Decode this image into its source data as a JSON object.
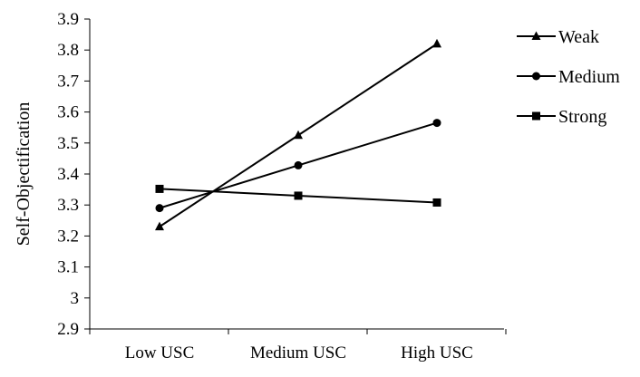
{
  "chart_data": {
    "type": "line",
    "categories": [
      "Low USC",
      "Medium USC",
      "High USC"
    ],
    "ylabel": "Self-Objectification",
    "xlabel": "",
    "ylim": [
      2.9,
      3.9
    ],
    "yticks": [
      "2.9",
      "3",
      "3.1",
      "3.2",
      "3.3",
      "3.4",
      "3.5",
      "3.6",
      "3.7",
      "3.8",
      "3.9"
    ],
    "grid": false,
    "legend_position": "right",
    "series": [
      {
        "name": "Weak",
        "marker": "triangle",
        "values": [
          3.23,
          3.525,
          3.82
        ]
      },
      {
        "name": "Medium",
        "marker": "circle",
        "values": [
          3.29,
          3.428,
          3.565
        ]
      },
      {
        "name": "Strong",
        "marker": "square",
        "values": [
          3.352,
          3.33,
          3.308
        ]
      }
    ],
    "line_color": "#000000"
  }
}
